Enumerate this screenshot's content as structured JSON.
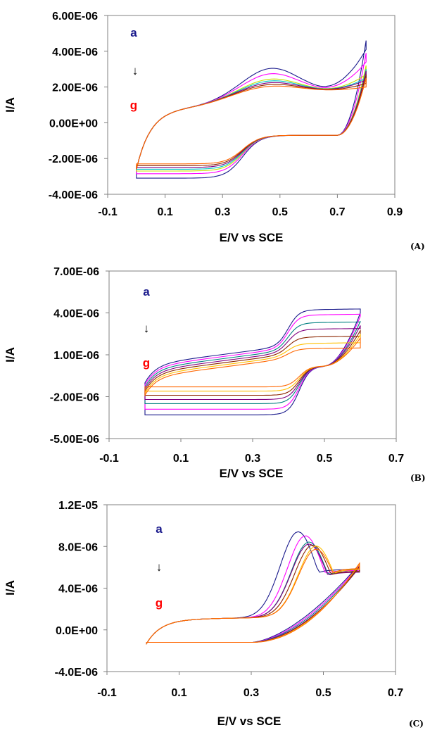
{
  "chart_data": [
    {
      "type": "line",
      "panel_label": "(A)",
      "xlabel": "E/V vs SCE",
      "ylabel": "I/A",
      "xlim": [
        -0.1,
        0.9
      ],
      "ylim": [
        -4e-06,
        6e-06
      ],
      "x_ticks": [
        "-0.1",
        "0.1",
        "0.3",
        "0.5",
        "0.7",
        "0.9"
      ],
      "y_ticks": [
        "6.00E-06",
        "4.00E-06",
        "2.00E-06",
        "0.00E+00",
        "-2.00E-06",
        "-4.00E-06"
      ],
      "annotation_top": "a",
      "annotation_arrow": "↓",
      "annotation_bottom": "g",
      "x_start": 0.0,
      "x_end": 0.8,
      "series": [
        {
          "color": "#1a1a8c",
          "anodic_peak": [
            0.47,
            3.3e-06
          ],
          "end_current": 4.6e-06,
          "cathodic_min": [
            0.3,
            -3.1e-06
          ]
        },
        {
          "color": "#ff00ff",
          "anodic_peak": [
            0.47,
            3e-06
          ],
          "end_current": 3.9e-06,
          "cathodic_min": [
            0.3,
            -2.85e-06
          ]
        },
        {
          "color": "#c8e000",
          "anodic_peak": [
            0.47,
            2.7e-06
          ],
          "end_current": 3.2e-06,
          "cathodic_min": [
            0.3,
            -2.7e-06
          ]
        },
        {
          "color": "#00c8c8",
          "anodic_peak": [
            0.47,
            2.6e-06
          ],
          "end_current": 3e-06,
          "cathodic_min": [
            0.3,
            -2.6e-06
          ]
        },
        {
          "color": "#800080",
          "anodic_peak": [
            0.47,
            2.5e-06
          ],
          "end_current": 2.9e-06,
          "cathodic_min": [
            0.3,
            -2.5e-06
          ]
        },
        {
          "color": "#8b2500",
          "anodic_peak": [
            0.47,
            2.4e-06
          ],
          "end_current": 2.7e-06,
          "cathodic_min": [
            0.3,
            -2.4e-06
          ]
        },
        {
          "color": "#ff6600",
          "anodic_peak": [
            0.47,
            2.3e-06
          ],
          "end_current": 2.5e-06,
          "cathodic_min": [
            0.3,
            -2.3e-06
          ]
        }
      ]
    },
    {
      "type": "line",
      "panel_label": "(B)",
      "xlabel": "E/V vs SCE",
      "ylabel": "I/A",
      "xlim": [
        -0.1,
        0.7
      ],
      "ylim": [
        -5e-06,
        7e-06
      ],
      "x_ticks": [
        "-0.1",
        "0.1",
        "0.3",
        "0.5",
        "0.7"
      ],
      "y_ticks": [
        "7.00E-06",
        "4.00E-06",
        "1.00E-06",
        "-2.00E-06",
        "-5.00E-06"
      ],
      "annotation_top": "a",
      "annotation_arrow": "↓",
      "annotation_bottom": "g",
      "x_start": 0.0,
      "x_end": 0.6,
      "series": [
        {
          "color": "#1a1a8c",
          "plateau_high": 5e-06,
          "plateau_low": -3.3e-06
        },
        {
          "color": "#ff00ff",
          "plateau_high": 4.6e-06,
          "plateau_low": -2.9e-06
        },
        {
          "color": "#008080",
          "plateau_high": 4e-06,
          "plateau_low": -2.5e-06
        },
        {
          "color": "#800080",
          "plateau_high": 3.5e-06,
          "plateau_low": -2.2e-06
        },
        {
          "color": "#8b2500",
          "plateau_high": 2.9e-06,
          "plateau_low": -1.9e-06
        },
        {
          "color": "#ffc000",
          "plateau_high": 2.4e-06,
          "plateau_low": -1.6e-06
        },
        {
          "color": "#ff6600",
          "plateau_high": 2e-06,
          "plateau_low": -1.3e-06
        }
      ]
    },
    {
      "type": "line",
      "panel_label": "(C)",
      "xlabel": "E/V vs SCE",
      "ylabel": "I/A",
      "xlim": [
        -0.1,
        0.7
      ],
      "ylim": [
        -4e-06,
        1.2e-05
      ],
      "x_ticks": [
        "-0.1",
        "0.1",
        "0.3",
        "0.5",
        "0.7"
      ],
      "y_ticks": [
        "1.2E-05",
        "8.0E-06",
        "4.0E-06",
        "0.0E+00",
        "-4.0E-06"
      ],
      "annotation_top": "a",
      "annotation_arrow": "↓",
      "annotation_bottom": "g",
      "x_start": 0.01,
      "x_end": 0.6,
      "series": [
        {
          "color": "#1a1a8c",
          "anodic_peak": [
            0.43,
            9.2e-06
          ],
          "end_current": 6.3e-06
        },
        {
          "color": "#ff00ff",
          "anodic_peak": [
            0.45,
            8.8e-06
          ],
          "end_current": 6.2e-06
        },
        {
          "color": "#008080",
          "anodic_peak": [
            0.46,
            8.2e-06
          ],
          "end_current": 6.1e-06
        },
        {
          "color": "#800080",
          "anodic_peak": [
            0.46,
            8e-06
          ],
          "end_current": 6e-06
        },
        {
          "color": "#8b2500",
          "anodic_peak": [
            0.47,
            7.9e-06
          ],
          "end_current": 6.1e-06
        },
        {
          "color": "#ffc000",
          "anodic_peak": [
            0.48,
            7.8e-06
          ],
          "end_current": 6.3e-06
        },
        {
          "color": "#ff6600",
          "anodic_peak": [
            0.48,
            7.5e-06
          ],
          "end_current": 6.4e-06
        }
      ]
    }
  ],
  "annotation_colors": {
    "top": "#1a1a8c",
    "bottom": "#ff0000"
  }
}
